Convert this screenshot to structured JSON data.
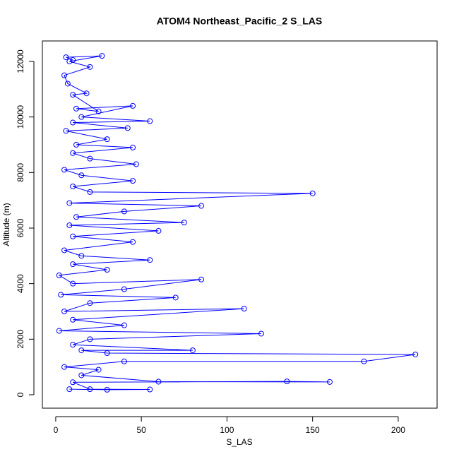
{
  "chart_data": {
    "type": "line",
    "title": "ATOM4 Northeast_Pacific_2 S_LAS",
    "x_label": "S_LAS",
    "y_label": "Altitude (m)",
    "xlim": [
      -7.8,
      222.7
    ],
    "ylim": [
      -483,
      12737
    ],
    "xticks": [
      0,
      50,
      100,
      150,
      200
    ],
    "yticks": [
      0,
      2000,
      4000,
      6000,
      8000,
      10000,
      12000
    ],
    "markers": "open-circle",
    "series": [
      {
        "color": "#0000ff",
        "x": [
          8,
          30,
          55,
          20,
          10,
          135,
          160,
          60,
          15,
          25,
          5,
          40,
          180,
          210,
          30,
          15,
          80,
          10,
          20,
          120,
          2,
          40,
          10,
          110,
          5,
          20,
          70,
          3,
          40,
          85,
          10,
          2,
          30,
          10,
          55,
          15,
          5,
          45,
          10,
          60,
          8,
          75,
          12,
          40,
          85,
          8,
          150,
          20,
          10,
          45,
          15,
          5,
          47,
          20,
          10,
          45,
          12,
          30,
          6,
          42,
          10,
          55,
          15,
          45,
          12,
          25,
          10,
          18,
          7,
          5,
          20,
          8,
          27,
          6,
          10
        ],
        "values": [
          200,
          180,
          190,
          200,
          450,
          480,
          460,
          470,
          700,
          900,
          1000,
          1200,
          1200,
          1450,
          1500,
          1600,
          1600,
          1800,
          2000,
          2200,
          2300,
          2500,
          2700,
          3100,
          3000,
          3300,
          3500,
          3600,
          3800,
          4150,
          4000,
          4300,
          4500,
          4700,
          4850,
          5000,
          5200,
          5500,
          5700,
          5900,
          6100,
          6200,
          6400,
          6600,
          6800,
          6900,
          7250,
          7300,
          7500,
          7700,
          7900,
          8100,
          8300,
          8500,
          8700,
          8900,
          9000,
          9200,
          9500,
          9600,
          9800,
          9850,
          10000,
          10400,
          10300,
          10200,
          10800,
          10850,
          11200,
          11500,
          11800,
          12000,
          12200,
          12150,
          12050
        ]
      }
    ]
  }
}
